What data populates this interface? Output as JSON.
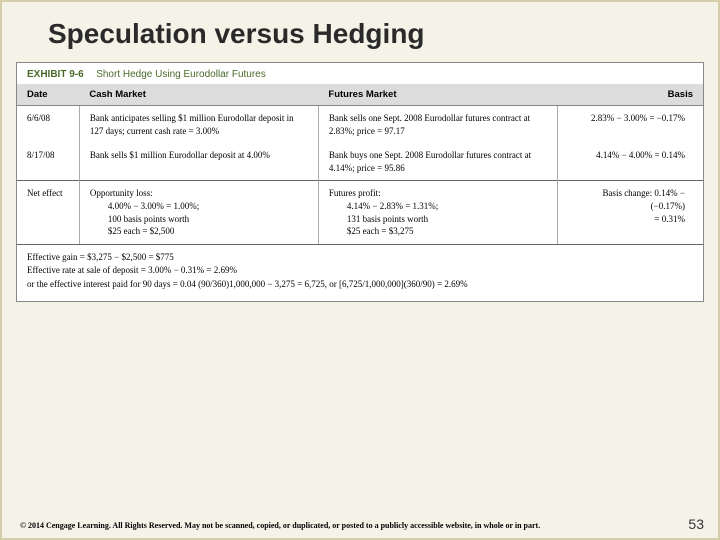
{
  "title": "Speculation versus Hedging",
  "exhibit": {
    "number": "EXHIBIT 9-6",
    "title": "Short Hedge Using Eurodollar Futures"
  },
  "table": {
    "headers": {
      "date": "Date",
      "cash": "Cash Market",
      "futures": "Futures Market",
      "basis": "Basis"
    },
    "rows": [
      {
        "date": "6/6/08",
        "cash": "Bank anticipates selling $1 million Eurodollar deposit in 127 days; current cash rate = 3.00%",
        "futures": "Bank sells one Sept. 2008 Eurodollar futures contract at 2.83%; price = 97.17",
        "basis": "2.83% − 3.00% = −0.17%"
      },
      {
        "date": "8/17/08",
        "cash": "Bank sells $1 million Eurodollar deposit at 4.00%",
        "futures": "Bank buys one Sept. 2008 Eurodollar futures contract at 4.14%; price = 95.86",
        "basis": "4.14% − 4.00% = 0.14%"
      }
    ],
    "net": {
      "date": "Net effect",
      "cash_lines": [
        "Opportunity loss:",
        "4.00% − 3.00% = 1.00%;",
        "100 basis points worth",
        "$25 each = $2,500"
      ],
      "fut_lines": [
        "Futures profit:",
        "4.14% − 2.83% = 1.31%;",
        "131 basis points worth",
        "$25 each = $3,275"
      ],
      "basis_lines": [
        "Basis change: 0.14% − (−0.17%)",
        "= 0.31%"
      ]
    }
  },
  "effective": {
    "line1": "Effective gain = $3,275 − $2,500 = $775",
    "line2": "Effective rate at sale of deposit = 3.00% − 0.31% = 2.69%",
    "line3": "or the effective interest paid for 90 days = 0.04 (90/360)1,000,000 − 3,275 = 6,725, or [6,725/1,000,000](360/90) = 2.69%"
  },
  "copyright": "© 2014 Cengage Learning. All Rights Reserved. May not be scanned, copied, or duplicated, or posted to a publicly accessible website, in whole or in part.",
  "pageNumber": "53"
}
